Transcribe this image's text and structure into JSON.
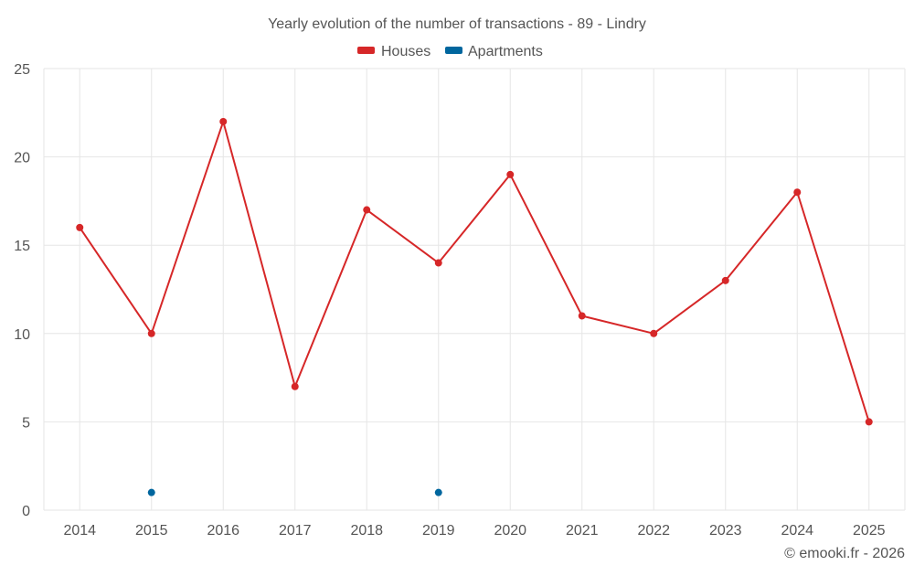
{
  "chart_data": {
    "type": "line",
    "title": "Yearly evolution of the number of transactions - 89 - Lindry",
    "categories": [
      "2014",
      "2015",
      "2016",
      "2017",
      "2018",
      "2019",
      "2020",
      "2021",
      "2022",
      "2023",
      "2024",
      "2025"
    ],
    "series": [
      {
        "name": "Houses",
        "color": "#d62728",
        "values": [
          16,
          10,
          22,
          7,
          17,
          14,
          19,
          11,
          10,
          13,
          18,
          5
        ]
      },
      {
        "name": "Apartments",
        "color": "#00669e",
        "values": [
          null,
          1,
          null,
          null,
          null,
          1,
          null,
          null,
          null,
          null,
          null,
          null
        ]
      }
    ],
    "ylim": [
      0,
      25
    ],
    "yticks": [
      0,
      5,
      10,
      15,
      20,
      25
    ],
    "xlabel": "",
    "ylabel": "",
    "grid": true,
    "legend_position": "top-center"
  },
  "credit": "© emooki.fr - 2026"
}
